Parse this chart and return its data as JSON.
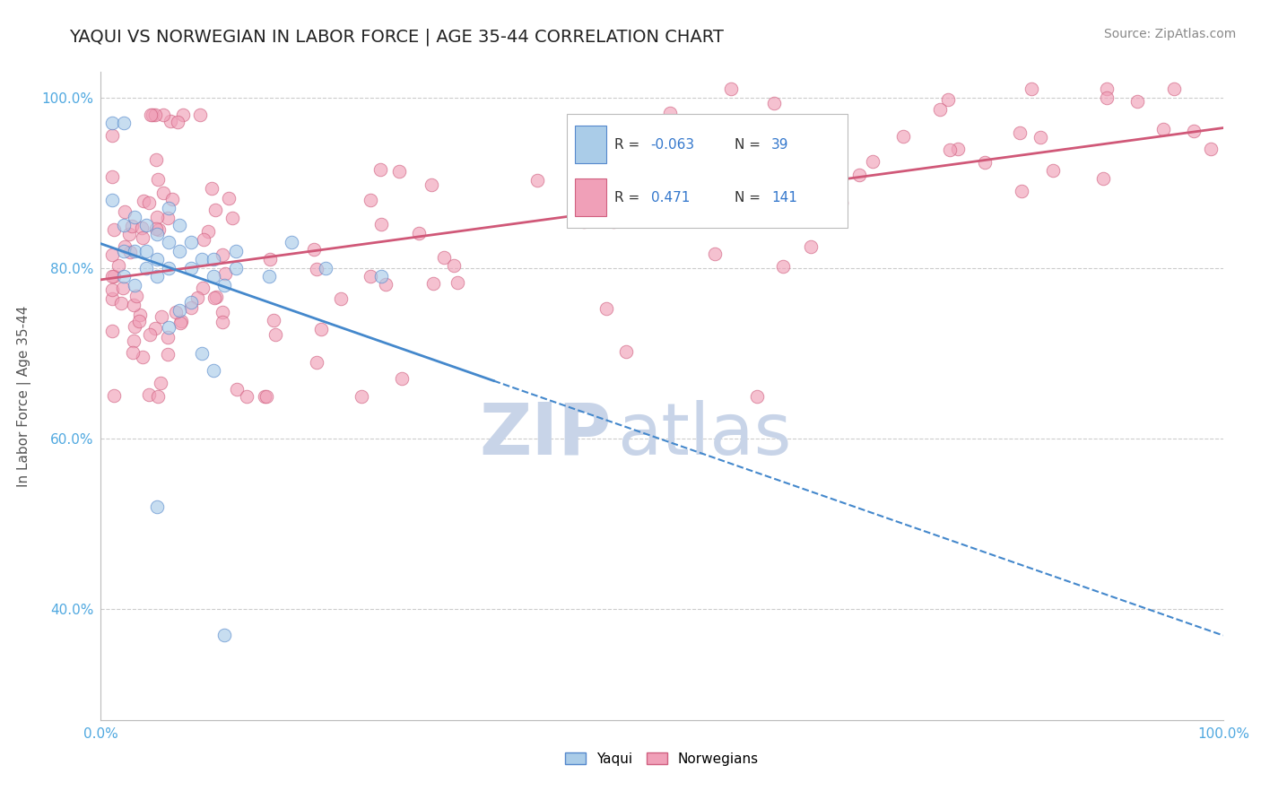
{
  "title": "YAQUI VS NORWEGIAN IN LABOR FORCE | AGE 35-44 CORRELATION CHART",
  "source": "Source: ZipAtlas.com",
  "ylabel": "In Labor Force | Age 35-44",
  "xlim": [
    0.0,
    1.0
  ],
  "ylim": [
    0.27,
    1.03
  ],
  "x_ticks": [
    0.0,
    0.25,
    0.5,
    0.75,
    1.0
  ],
  "x_tick_labels": [
    "0.0%",
    "",
    "",
    "",
    "100.0%"
  ],
  "y_ticks": [
    0.4,
    0.6,
    0.8,
    1.0
  ],
  "y_tick_labels": [
    "40.0%",
    "60.0%",
    "80.0%",
    "100.0%"
  ],
  "grid_color": "#cccccc",
  "background_color": "#ffffff",
  "title_color": "#222222",
  "title_fontsize": 14,
  "source_fontsize": 10,
  "axis_label_color": "#555555",
  "tick_label_color": "#4fa8e0",
  "watermark_zip": "ZIP",
  "watermark_atlas": "atlas",
  "watermark_color": "#c8d4e8",
  "watermark_fontsize_zip": 58,
  "watermark_fontsize_atlas": 58,
  "legend_R_yaqui": "-0.063",
  "legend_N_yaqui": "39",
  "legend_R_norw": "0.471",
  "legend_N_norw": "141",
  "yaqui_fill_color": "#aacce8",
  "yaqui_edge_color": "#5588cc",
  "norw_fill_color": "#f0a0b8",
  "norw_edge_color": "#d06080",
  "yaqui_line_color": "#4488cc",
  "norw_line_color": "#d05878",
  "scatter_size": 110,
  "scatter_alpha": 0.65,
  "scatter_lw": 0.7
}
